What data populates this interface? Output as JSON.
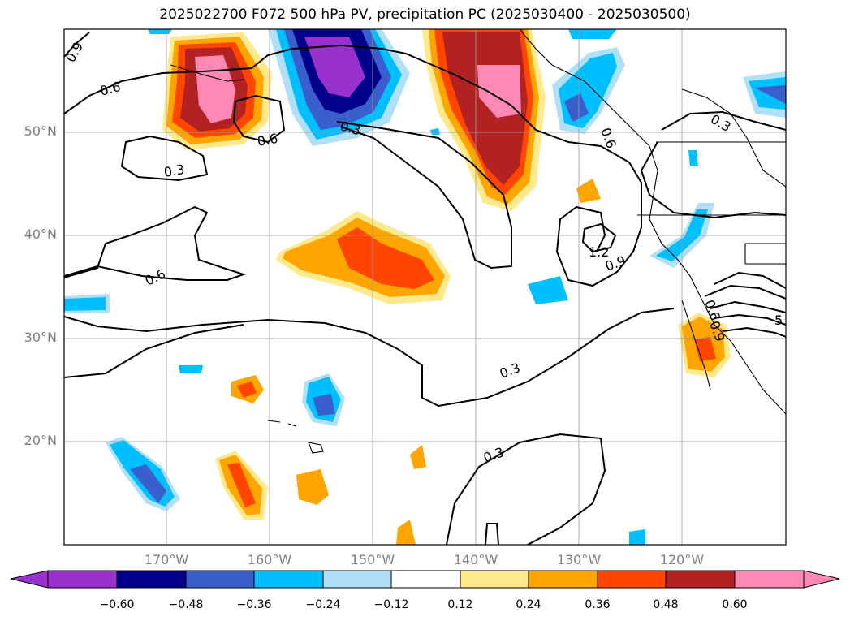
{
  "title": "2025022700 F072 500 hPa PV, precipitation PC (2025030400 - 2025030500)",
  "lat_labels": [
    "50°N",
    "40°N",
    "30°N",
    "20°N"
  ],
  "lon_labels": [
    "170°W",
    "160°W",
    "150°W",
    "140°W",
    "130°W",
    "120°W"
  ],
  "contour_labels": [
    "0.9",
    "0.6",
    "0.6",
    "0.3",
    "0.3",
    "0.3",
    "0.6",
    "0.9",
    "1.2",
    "0.6",
    "0.9",
    "0.3",
    "0.3",
    "0.6",
    "5"
  ],
  "colorbar": {
    "ticks": [
      "−0.60",
      "−0.48",
      "−0.36",
      "−0.24",
      "−0.12",
      "0.12",
      "0.24",
      "0.36",
      "0.48",
      "0.60"
    ],
    "colors": [
      "#9932cc",
      "#00008b",
      "#3a5fcd",
      "#00bfff",
      "#b0e0f8",
      "#ffffff",
      "#ffe98a",
      "#ffa500",
      "#ff4500",
      "#b22222",
      "#ff89b4"
    ]
  }
}
